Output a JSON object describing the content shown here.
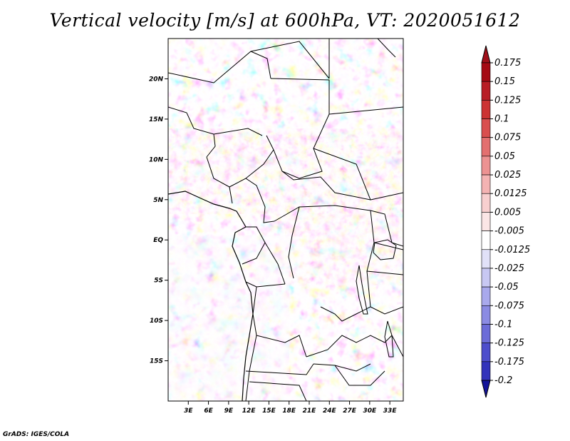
{
  "title": "Vertical velocity [m/s] at 600hPa, VT: 2020051612",
  "footer": "GrADS: IGES/COLA",
  "map": {
    "lon_range": [
      0,
      35
    ],
    "lat_range": [
      -20,
      25
    ],
    "x_ticks": [
      {
        "value": 3,
        "label": "3E"
      },
      {
        "value": 6,
        "label": "6E"
      },
      {
        "value": 9,
        "label": "9E"
      },
      {
        "value": 12,
        "label": "12E"
      },
      {
        "value": 15,
        "label": "15E"
      },
      {
        "value": 18,
        "label": "18E"
      },
      {
        "value": 21,
        "label": "21E"
      },
      {
        "value": 24,
        "label": "24E"
      },
      {
        "value": 27,
        "label": "27E"
      },
      {
        "value": 30,
        "label": "30E"
      },
      {
        "value": 33,
        "label": "33E"
      }
    ],
    "y_ticks": [
      {
        "value": 20,
        "label": "20N"
      },
      {
        "value": 15,
        "label": "15N"
      },
      {
        "value": 10,
        "label": "10N"
      },
      {
        "value": 5,
        "label": "5N"
      },
      {
        "value": 0,
        "label": "EQ"
      },
      {
        "value": -5,
        "label": "5S"
      },
      {
        "value": -10,
        "label": "10S"
      },
      {
        "value": -15,
        "label": "15S"
      }
    ]
  },
  "colorbar": {
    "levels": [
      {
        "label": "0.175",
        "color": "#a50a14"
      },
      {
        "label": "0.15",
        "color": "#b81d25"
      },
      {
        "label": "0.125",
        "color": "#cc3333"
      },
      {
        "label": "0.1",
        "color": "#d94f4f"
      },
      {
        "label": "0.075",
        "color": "#e37070"
      },
      {
        "label": "0.05",
        "color": "#ec9292"
      },
      {
        "label": "0.025",
        "color": "#f4b3b3"
      },
      {
        "label": "0.0125",
        "color": "#f8cfcf"
      },
      {
        "label": "0.005",
        "color": "#fbe6e6"
      },
      {
        "label": "-0.005",
        "color": "#ffffff"
      },
      {
        "label": "-0.0125",
        "color": "#e1e1f8"
      },
      {
        "label": "-0.025",
        "color": "#c8c8f3"
      },
      {
        "label": "-0.05",
        "color": "#a9a9ec"
      },
      {
        "label": "-0.075",
        "color": "#8b8be3"
      },
      {
        "label": "-0.1",
        "color": "#6c6cd8"
      },
      {
        "label": "-0.125",
        "color": "#4d4dcc"
      },
      {
        "label": "-0.175",
        "color": "#3333bb"
      },
      {
        "label": "-0.2",
        "color": "#1e1ea8"
      }
    ],
    "low_color": "#14149a",
    "high_color": "#a0101a"
  }
}
